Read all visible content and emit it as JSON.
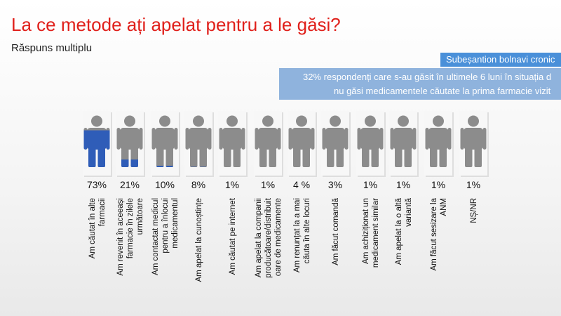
{
  "header": {
    "title": "La ce metode ați apelat pentru a le găsi?",
    "subtitle": "Răspuns multiplu"
  },
  "subgroup": {
    "label": "Subeșantion bolnavi cronic",
    "description_lines": [
      "32% respondenți care s-au găsit în ultimele 6 luni în situația d",
      "nu găsi medicamentele căutate la prima farmacie vizit"
    ]
  },
  "colors": {
    "title": "#e0201b",
    "fill": "#2f5db8",
    "figure": "#8c8c8c",
    "badge": "#4a90d9",
    "description_box": "#8fb3dd"
  },
  "chart_data": {
    "type": "bar",
    "categories": [
      [
        "Am căutat în alte",
        "farmacii"
      ],
      [
        "Am revenit în aceeași",
        "farmacie în zilele",
        "următoare"
      ],
      [
        "Am contactat medicul",
        "pentru a înlocui",
        "medicamentul"
      ],
      [
        "Am apelat la cunoștințe"
      ],
      [
        "Am căutat pe internet"
      ],
      [
        "Am apelat la companii",
        "producătoare/distribuit",
        "oare de medicamente"
      ],
      [
        "Am renunțat la a mai",
        "căuta în alte locuri"
      ],
      [
        "Am făcut comandă"
      ],
      [
        "Am achiziționat un",
        "medicament similar"
      ],
      [
        "Am apelat la o altă",
        "variantă"
      ],
      [
        "Am făcut sesizare la",
        "ANM"
      ],
      [
        "NȘ/NR"
      ]
    ],
    "values": [
      73,
      21,
      10,
      8,
      1,
      1,
      4,
      3,
      1,
      1,
      1,
      1
    ],
    "labels": [
      "73%",
      "21%",
      "10%",
      "8%",
      "1%",
      "1%",
      "4 %",
      "3%",
      "1%",
      "1%",
      "1%",
      "1%"
    ],
    "ylim": [
      0,
      100
    ]
  }
}
